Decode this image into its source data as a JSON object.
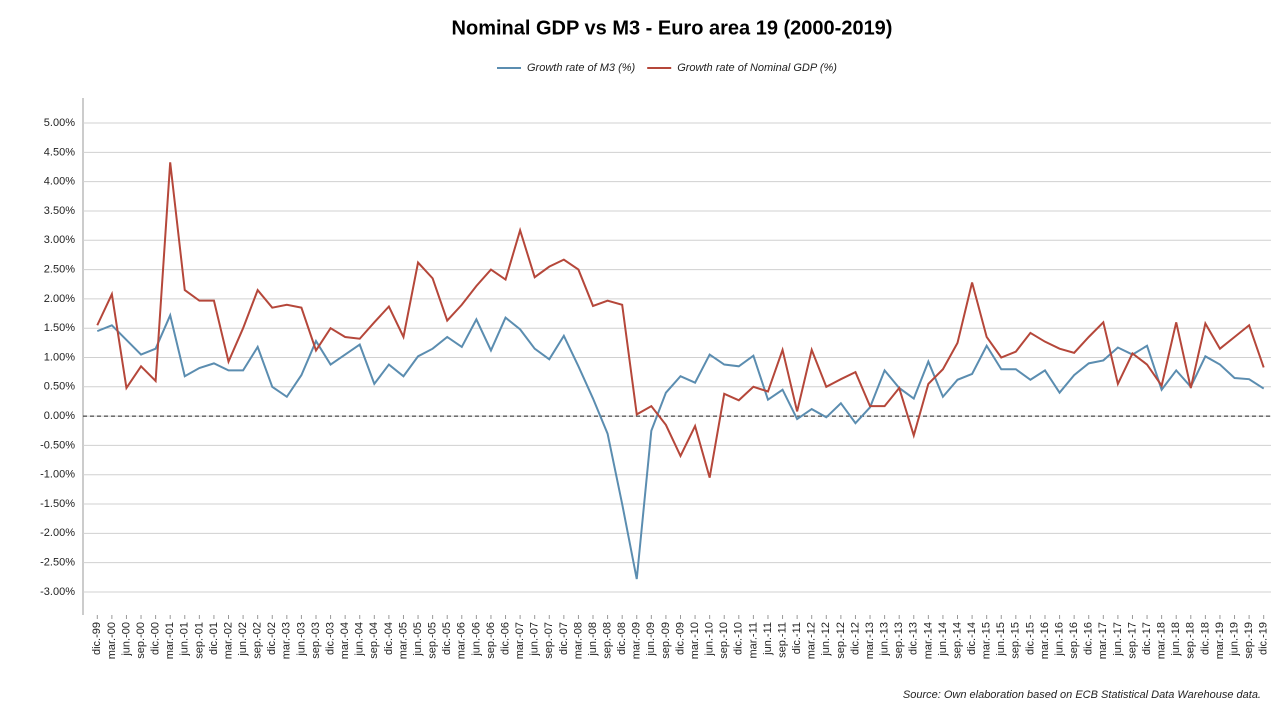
{
  "chart_data": {
    "type": "line",
    "title": "Nominal GDP vs M3 - Euro area 19 (2000-2019)",
    "source": "Source: Own elaboration based on ECB Statistical Data Warehouse data.",
    "categories": [
      "dic.-99",
      "mar.-00",
      "jun.-00",
      "sep.-00",
      "dic.-00",
      "mar.-01",
      "jun.-01",
      "sep.-01",
      "dic.-01",
      "mar.-02",
      "jun.-02",
      "sep.-02",
      "dic.-02",
      "mar.-03",
      "jun.-03",
      "sep.-03",
      "dic.-03",
      "mar.-04",
      "jun.-04",
      "sep.-04",
      "dic.-04",
      "mar.-05",
      "jun.-05",
      "sep.-05",
      "dic.-05",
      "mar.-06",
      "jun.-06",
      "sep.-06",
      "dic.-06",
      "mar.-07",
      "jun.-07",
      "sep.-07",
      "dic.-07",
      "mar.-08",
      "jun.-08",
      "sep.-08",
      "dic.-08",
      "mar.-09",
      "jun.-09",
      "sep.-09",
      "dic.-09",
      "mar.-10",
      "jun.-10",
      "sep.-10",
      "dic.-10",
      "mar.-11",
      "jun.-11",
      "sep.-11",
      "dic.-11",
      "mar.-12",
      "jun.-12",
      "sep.-12",
      "dic.-12",
      "mar.-13",
      "jun.-13",
      "sep.-13",
      "dic.-13",
      "mar.-14",
      "jun.-14",
      "sep.-14",
      "dic.-14",
      "mar.-15",
      "jun.-15",
      "sep.-15",
      "dic.-15",
      "mar.-16",
      "jun.-16",
      "sep.-16",
      "dic.-16",
      "mar.-17",
      "jun.-17",
      "sep.-17",
      "dic.-17",
      "mar.-18",
      "jun.-18",
      "sep.-18",
      "dic.-18",
      "mar.-19",
      "jun.-19",
      "sep.-19",
      "dic.-19"
    ],
    "series": [
      {
        "name": "Growth rate of M3 (%)",
        "color": "#5b8db0",
        "values": [
          1.45,
          1.55,
          1.3,
          1.05,
          1.15,
          1.72,
          0.68,
          0.82,
          0.9,
          0.78,
          0.78,
          1.18,
          0.5,
          0.33,
          0.7,
          1.28,
          0.88,
          1.05,
          1.22,
          0.55,
          0.88,
          0.68,
          1.02,
          1.15,
          1.35,
          1.18,
          1.65,
          1.12,
          1.68,
          1.48,
          1.15,
          0.97,
          1.37,
          0.85,
          0.3,
          -0.3,
          -1.5,
          -2.78,
          -0.25,
          0.4,
          0.68,
          0.57,
          1.05,
          0.88,
          0.85,
          1.03,
          0.28,
          0.45,
          -0.05,
          0.12,
          -0.02,
          0.22,
          -0.12,
          0.15,
          0.78,
          0.48,
          0.3,
          0.93,
          0.33,
          0.62,
          0.72,
          1.2,
          0.8,
          0.8,
          0.62,
          0.78,
          0.4,
          0.7,
          0.9,
          0.95,
          1.17,
          1.05,
          1.2,
          0.45,
          0.78,
          0.5,
          1.02,
          0.88,
          0.65,
          0.63,
          0.47
        ]
      },
      {
        "name": "Growth rate of Nominal GDP (%)",
        "color": "#b5473a",
        "values": [
          1.55,
          2.08,
          0.48,
          0.85,
          0.6,
          4.33,
          2.15,
          1.97,
          1.97,
          0.93,
          1.5,
          2.15,
          1.85,
          1.9,
          1.85,
          1.12,
          1.5,
          1.35,
          1.32,
          1.6,
          1.87,
          1.35,
          2.62,
          2.35,
          1.63,
          1.9,
          2.22,
          2.5,
          2.33,
          3.17,
          2.37,
          2.55,
          2.67,
          2.5,
          1.88,
          1.97,
          1.9,
          0.03,
          0.17,
          -0.15,
          -0.68,
          -0.17,
          -1.05,
          0.38,
          0.27,
          0.5,
          0.42,
          1.13,
          0.08,
          1.13,
          0.5,
          0.63,
          0.75,
          0.17,
          0.17,
          0.48,
          -0.33,
          0.55,
          0.8,
          1.25,
          2.28,
          1.35,
          1.0,
          1.1,
          1.42,
          1.27,
          1.15,
          1.08,
          1.35,
          1.6,
          0.55,
          1.07,
          0.88,
          0.52,
          1.6,
          0.48,
          1.58,
          1.15,
          1.35,
          1.55,
          0.83
        ]
      }
    ],
    "ylim": [
      -3.4,
      5.4
    ],
    "yticks": [
      {
        "value": 5,
        "label": "5.00%"
      },
      {
        "value": 4.5,
        "label": "4.50%"
      },
      {
        "value": 4,
        "label": "4.00%"
      },
      {
        "value": 3.5,
        "label": "3.50%"
      },
      {
        "value": 3,
        "label": "3.00%"
      },
      {
        "value": 2.5,
        "label": "2.50%"
      },
      {
        "value": 2,
        "label": "2.00%"
      },
      {
        "value": 1.5,
        "label": "1.50%"
      },
      {
        "value": 1,
        "label": "1.00%"
      },
      {
        "value": 0.5,
        "label": "0.50%"
      },
      {
        "value": 0,
        "label": "0.00%"
      },
      {
        "value": -0.5,
        "label": "-0.50%"
      },
      {
        "value": -1,
        "label": "-1.00%"
      },
      {
        "value": -1.5,
        "label": "-1.50%"
      },
      {
        "value": -2,
        "label": "-2.00%"
      },
      {
        "value": -2.5,
        "label": "-2.50%"
      },
      {
        "value": -3,
        "label": "-3.00%"
      }
    ],
    "grid": true,
    "hline": 0,
    "legend": "top"
  }
}
